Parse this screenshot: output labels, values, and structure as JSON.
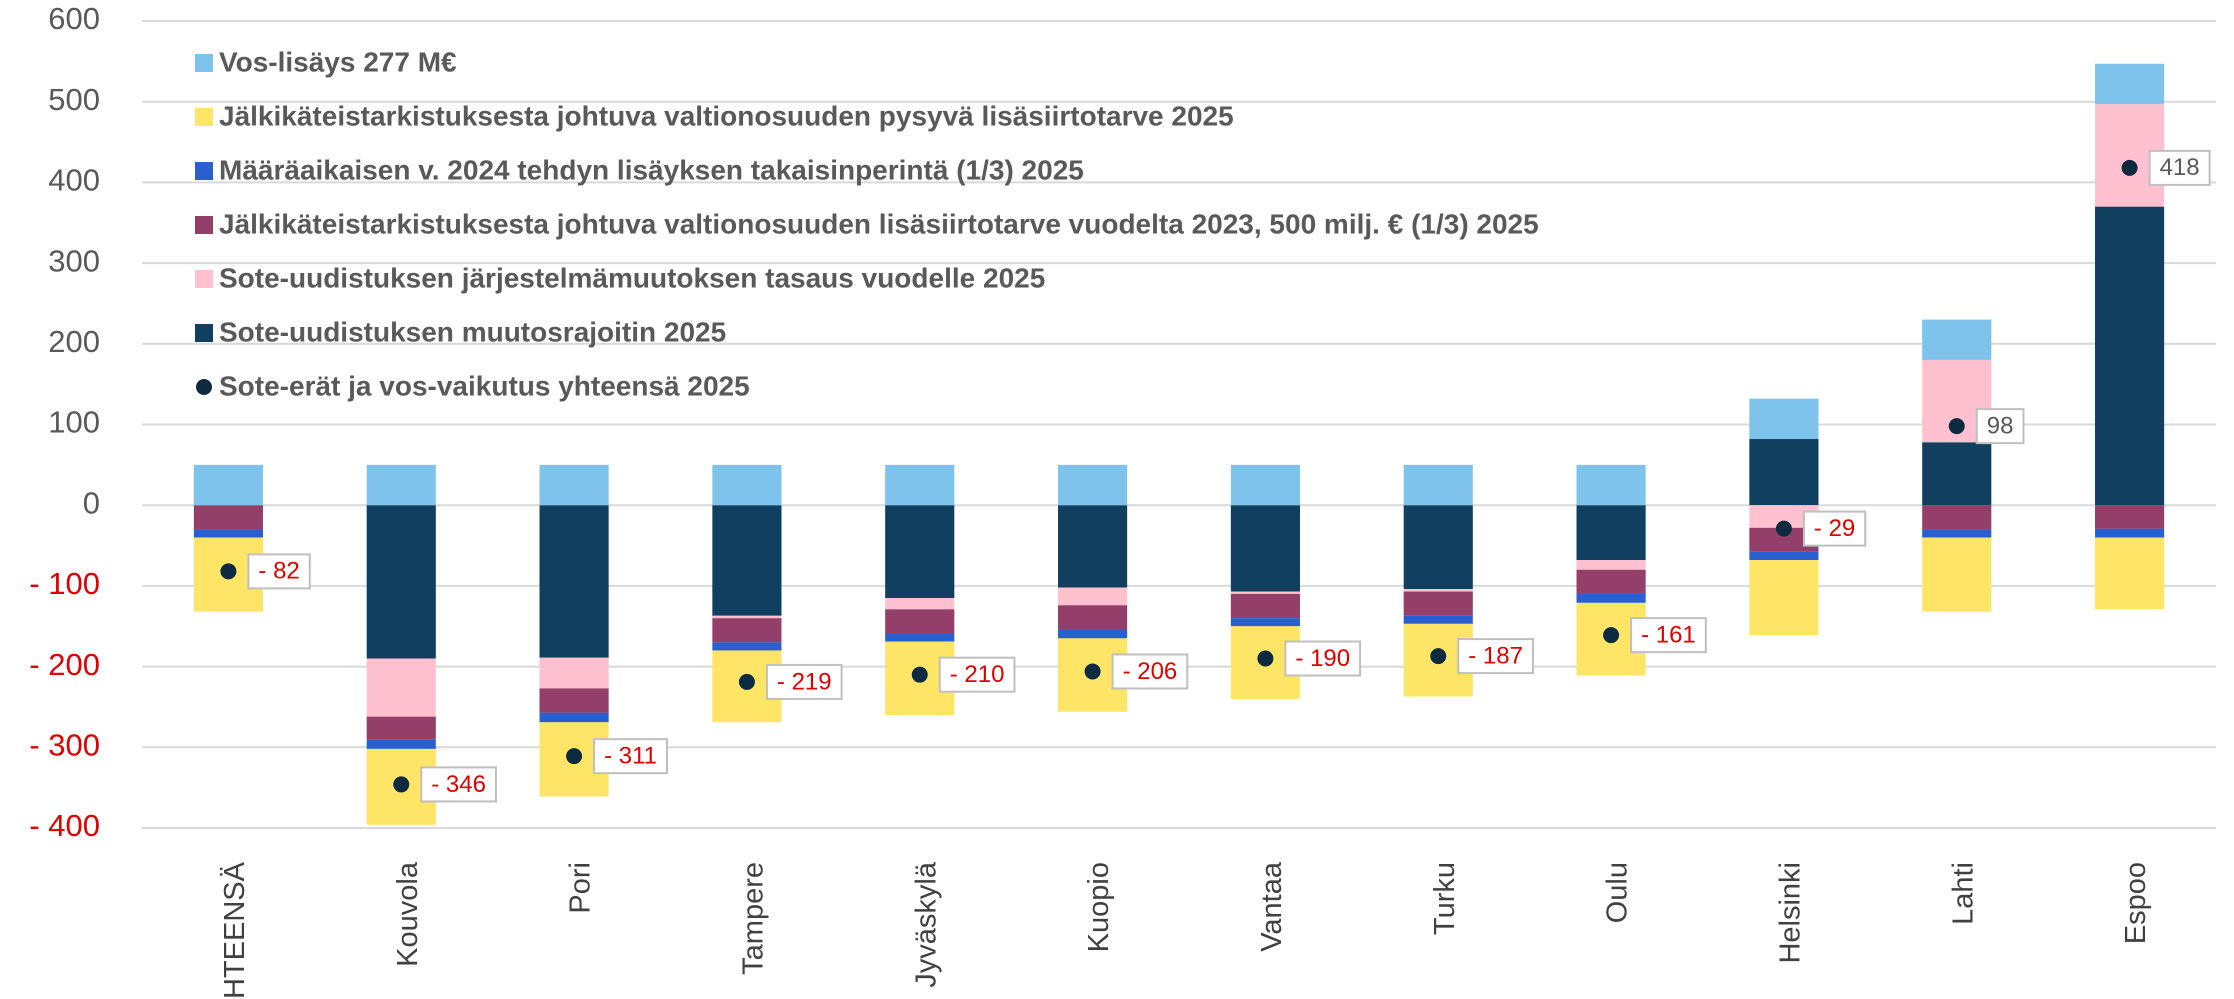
{
  "chart_data": {
    "type": "stacked_bar",
    "categories": [
      "YHTEENSÄ",
      "Kouvola",
      "Pori",
      "Tampere",
      "Jyväskylä",
      "Kuopio",
      "Vantaa",
      "Turku",
      "Oulu",
      "Helsinki",
      "Lahti",
      "Espoo"
    ],
    "series": [
      {
        "name": "Vos-lisäys 277 M€",
        "color": "#7dc3ec",
        "values": [
          50,
          50,
          50,
          50,
          50,
          50,
          50,
          50,
          50,
          50,
          50,
          50
        ]
      },
      {
        "name": "Jälkikäteistarkistuksesta johtuva valtionosuuden pysyvä lisäsiirtotarve 2025",
        "color": "#ffe566",
        "values": [
          -92,
          -94,
          -92,
          -89,
          -91,
          -91,
          -90,
          -90,
          -90,
          -93,
          -92,
          -89
        ]
      },
      {
        "name": "Määräaikaisen v. 2024 tehdyn lisäyksen takaisinperintä (1/3) 2025",
        "color": "#2a5fcf",
        "values": [
          -10,
          -12,
          -12,
          -10,
          -10,
          -11,
          -10,
          -10,
          -11,
          -11,
          -10,
          -11
        ]
      },
      {
        "name": "Jälkikäteistarkistuksesta johtuva valtionosuuden  lisäsiirtotarve vuodelta 2023, 500 milj. € (1/3) 2025",
        "color": "#933f6a",
        "values": [
          -30,
          -28,
          -30,
          -30,
          -30,
          -30,
          -30,
          -30,
          -30,
          -29,
          -30,
          -29
        ]
      },
      {
        "name": "Sote-uudistuksen järjestelmämuutoksen tasaus vuodelle 2025",
        "color": "#ffc0cf",
        "values": [
          0,
          -72,
          -38,
          -3,
          -14,
          -22,
          -3,
          -3,
          -12,
          -28,
          102,
          127
        ]
      },
      {
        "name": "Sote-uudistuksen muutosrajoitin 2025",
        "color": "#103f60",
        "values": [
          0,
          -190,
          -189,
          -137,
          -115,
          -102,
          -107,
          -104,
          -68,
          82,
          78,
          370
        ]
      }
    ],
    "total": {
      "name": "Sote-erät ja vos-vaikutus yhteensä 2025",
      "color": "#0d2a40",
      "values": [
        -82,
        -346,
        -311,
        -219,
        -210,
        -206,
        -190,
        -187,
        -161,
        -29,
        98,
        418
      ],
      "value_labels": [
        "- 82",
        "- 346",
        "- 311",
        "- 219",
        "- 210",
        "- 206",
        "- 190",
        "- 187",
        "- 161",
        "- 29",
        "98",
        "418"
      ]
    },
    "ylim": [
      -400,
      600
    ],
    "yticks": [
      {
        "value": -400,
        "label": "- 400"
      },
      {
        "value": -300,
        "label": "- 300"
      },
      {
        "value": -200,
        "label": "- 200"
      },
      {
        "value": -100,
        "label": "- 100"
      },
      0,
      100,
      200,
      300,
      400,
      500,
      600
    ],
    "grid": true,
    "negative_color": "#e00000"
  }
}
